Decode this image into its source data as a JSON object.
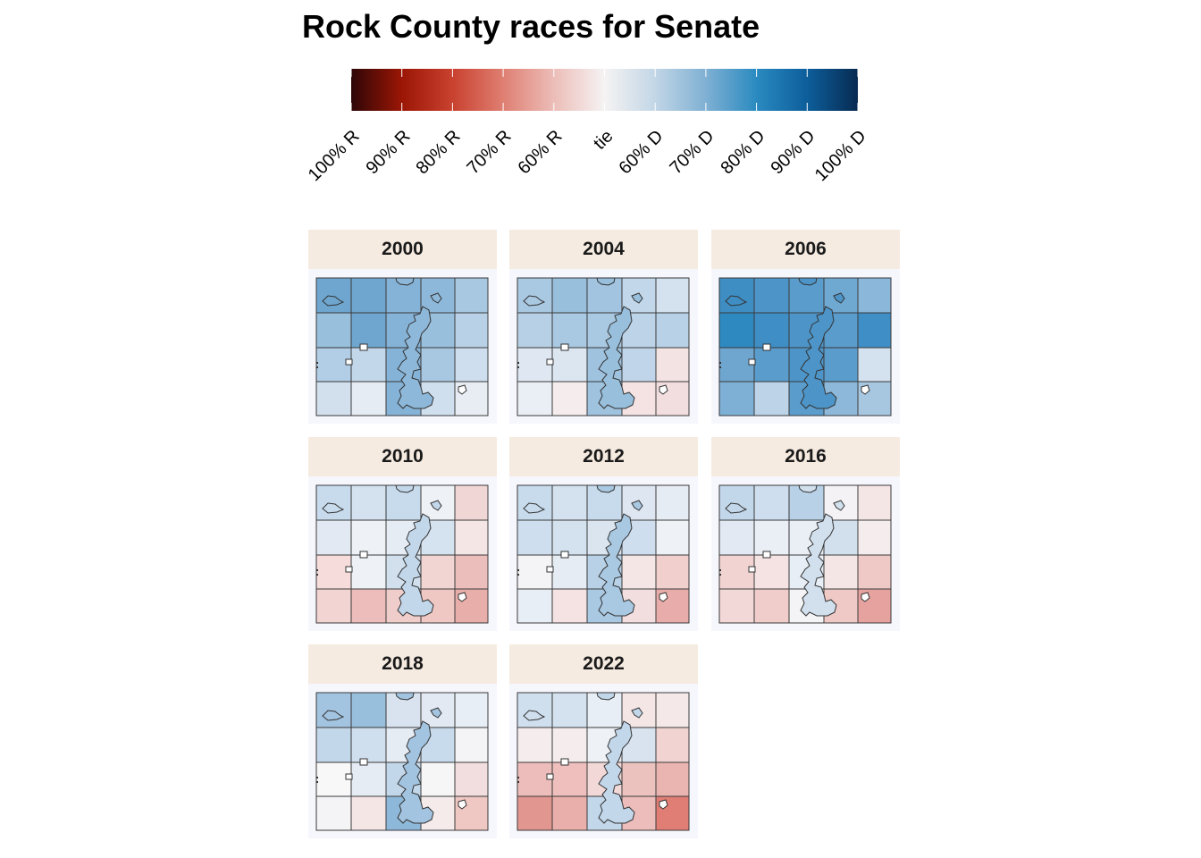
{
  "title": "Rock County races for Senate",
  "legend": {
    "labels": [
      "100% R",
      "90% R",
      "80% R",
      "70% R",
      "60% R",
      "tie",
      "60% D",
      "70% D",
      "80% D",
      "90% D",
      "100% D"
    ],
    "stops": [
      {
        "at": 0.0,
        "color": "#2e0606"
      },
      {
        "at": 0.1,
        "color": "#9c1606"
      },
      {
        "at": 0.2,
        "color": "#c9412f"
      },
      {
        "at": 0.3,
        "color": "#df7f72"
      },
      {
        "at": 0.4,
        "color": "#ecbdb8"
      },
      {
        "at": 0.5,
        "color": "#f5f3f3"
      },
      {
        "at": 0.6,
        "color": "#c2d6e6"
      },
      {
        "at": 0.7,
        "color": "#7fb0d3"
      },
      {
        "at": 0.8,
        "color": "#2a8ac0"
      },
      {
        "at": 0.9,
        "color": "#0d5e9b"
      },
      {
        "at": 1.0,
        "color": "#072b52"
      }
    ]
  },
  "panels": [
    {
      "year": "2000",
      "city_color": "#8eb8d9",
      "cells": [
        [
          "#6ea6cf",
          "#6ea6cf",
          "#85b3d7",
          "#8eb8d9",
          "#a8c8e2"
        ],
        [
          "#98bfdc",
          "#6ea6cf",
          "#85b3d7",
          "#98bfdc",
          "#b8d1e7"
        ],
        [
          "#b2cde6",
          "#c3d7ea",
          "#85b3d7",
          "#a8c8e2",
          "#cfdeee"
        ],
        [
          "#d2e0ee",
          "#e6ecf4",
          "#85b3d7",
          "#d0dfee",
          "#e8edf3"
        ]
      ]
    },
    {
      "year": "2004",
      "city_color": "#98bfdc",
      "cells": [
        [
          "#a9c8e1",
          "#98bfdc",
          "#a3c4e0",
          "#c3d7ea",
          "#d3e2ee"
        ],
        [
          "#b7d0e6",
          "#a9c8e1",
          "#a9c8e1",
          "#bcd3e8",
          "#b8d1e7"
        ],
        [
          "#dfe8f2",
          "#dbe6f1",
          "#9fc2df",
          "#c0d5e9",
          "#f4e3e3"
        ],
        [
          "#eaeff5",
          "#f5eded",
          "#9fc2df",
          "#f5e3e3",
          "#f2dede"
        ]
      ]
    },
    {
      "year": "2006",
      "city_color": "#4d95c8",
      "cells": [
        [
          "#3e8ec4",
          "#4d95c8",
          "#5a9ccc",
          "#6fa8d1",
          "#8ab7da"
        ],
        [
          "#2f89c1",
          "#3f8ec5",
          "#4d95c8",
          "#5a9ccc",
          "#3f8ec5"
        ],
        [
          "#6ea6cf",
          "#5a9ccc",
          "#4d95c8",
          "#5a9ccc",
          "#d3e2ee"
        ],
        [
          "#7eb0d5",
          "#bcd3e8",
          "#5a9ccc",
          "#8eb8d9",
          "#a7c7e1"
        ]
      ]
    },
    {
      "year": "2010",
      "city_color": "#c3d7ea",
      "cells": [
        [
          "#c8dbec",
          "#d3e2ee",
          "#c8dbec",
          "#eef1f6",
          "#f0d7d5"
        ],
        [
          "#e2e9f2",
          "#eef1f6",
          "#e6ecf4",
          "#d5e2ef",
          "#f5e6e6"
        ],
        [
          "#f6dcdb",
          "#eef1f6",
          "#d2e0ee",
          "#f0d5d3",
          "#ecbebb"
        ],
        [
          "#f2d4d2",
          "#ecbdba",
          "#efcdcb",
          "#efc7c3",
          "#e8aeaa"
        ]
      ]
    },
    {
      "year": "2012",
      "city_color": "#a9c8e1",
      "cells": [
        [
          "#c8dbec",
          "#d3e2ee",
          "#c8dbec",
          "#dde6f1",
          "#e6ecf4"
        ],
        [
          "#cfdeee",
          "#d3e2ee",
          "#dae5f0",
          "#cfdeee",
          "#eef1f6"
        ],
        [
          "#f4f4f6",
          "#e6ecf4",
          "#b8d1e7",
          "#f5e6e6",
          "#f0cfcd"
        ],
        [
          "#e8eef5",
          "#f5e3e3",
          "#a9c8e1",
          "#f2dede",
          "#e8adaa"
        ]
      ]
    },
    {
      "year": "2016",
      "city_color": "#d2e0ee",
      "cells": [
        [
          "#c3d7ea",
          "#cfdeee",
          "#b8d1e7",
          "#f4f2f5",
          "#f5e6e6"
        ],
        [
          "#e2e9f2",
          "#eaeff5",
          "#eaeff5",
          "#d2e0ee",
          "#f5eded"
        ],
        [
          "#f1d4d2",
          "#f5e3e3",
          "#e8eef5",
          "#f5e6e6",
          "#efc9c6"
        ],
        [
          "#f2d9d8",
          "#f0cdcb",
          "#f4f4f6",
          "#efc9c6",
          "#e5a29e"
        ]
      ]
    },
    {
      "year": "2018",
      "city_color": "#a3c4e0",
      "cells": [
        [
          "#a3c4e0",
          "#98bfdc",
          "#d8e3ef",
          "#e2e9f2",
          "#e8eef5"
        ],
        [
          "#c3d7ea",
          "#d0dfee",
          "#e6ecf4",
          "#c8dbec",
          "#f4f4f6"
        ],
        [
          "#f8f8f8",
          "#e6ecf4",
          "#c3d7ea",
          "#f6f6f6",
          "#f2dede"
        ],
        [
          "#f4f4f6",
          "#f5e6e6",
          "#8eb8d9",
          "#f5ebeb",
          "#efc7c3"
        ]
      ]
    },
    {
      "year": "2022",
      "city_color": "#c3d7ea",
      "cells": [
        [
          "#d0dfee",
          "#d3e2ee",
          "#e8eef5",
          "#f5e6e6",
          "#f5e8e8"
        ],
        [
          "#f5eded",
          "#f5eded",
          "#eef1f6",
          "#d8e3ef",
          "#f1d4d2"
        ],
        [
          "#ecbdba",
          "#eebfbc",
          "#f2d9d8",
          "#ecc2bf",
          "#eab5b1"
        ],
        [
          "#e29690",
          "#e9b0ab",
          "#c3d7ea",
          "#ecbdba",
          "#e07d74"
        ]
      ]
    }
  ]
}
